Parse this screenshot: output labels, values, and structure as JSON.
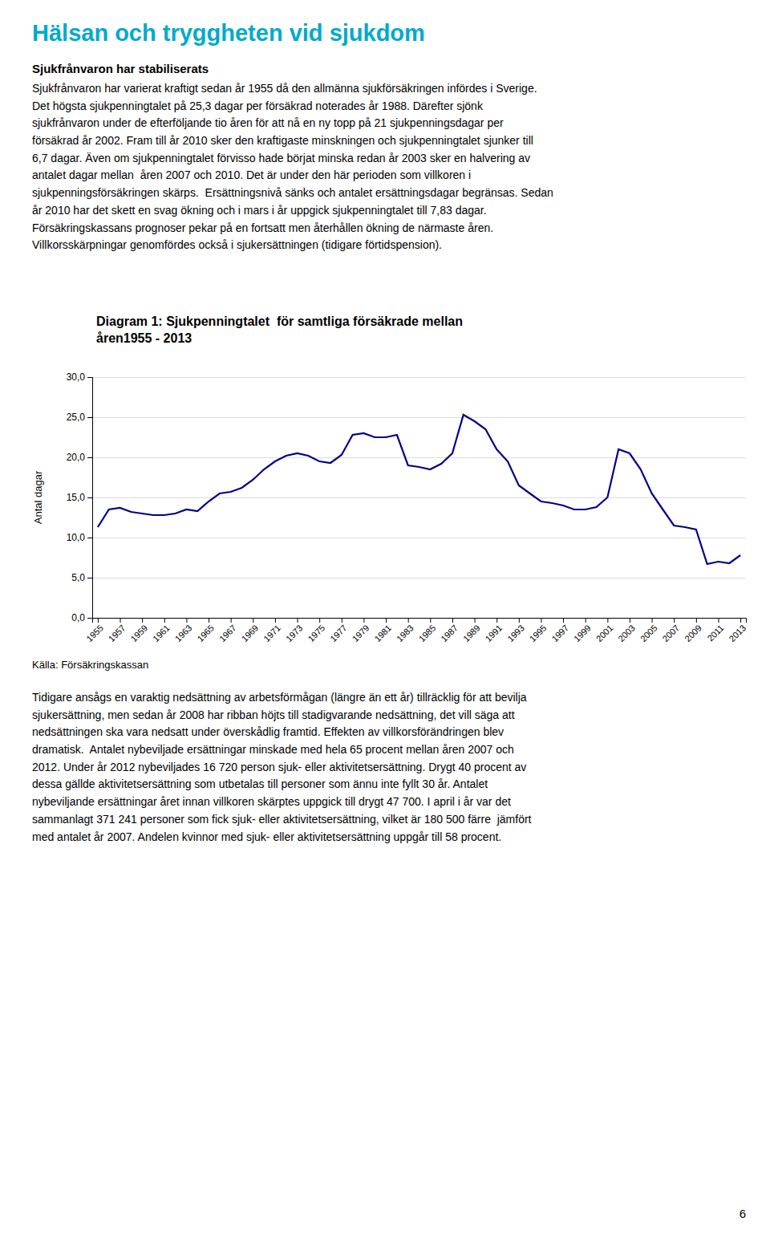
{
  "title": "Hälsan och tryggheten vid sjukdom",
  "title_color": "#00AACC",
  "subtitle": "Sjukfrånvaron har stabiliserats",
  "para1": "Sjukfrånvaron har varierat kraftigt sedan år 1955 då den allmänna sjukförsäkringen infördes i Sverige.\nDet högsta sjukpenningtalet på 25,3 dagar per försäkrad noterades år 1988. Därefter sjönk\nsjukfrånvaron under de efterföljande tio åren för att nå en ny topp på 21 sjukpenningsdagar per\nförsäkrad år 2002. Fram till år 2010 sker den kraftigaste minskningen och sjukpenningtalet sjunker till\n6,7 dagar. Även om sjukpenningtalet förvisso hade börjat minska redan år 2003 sker en halvering av\nantalet dagar mellan  åren 2007 och 2010. Det är under den här perioden som villkoren i\nsjukpenningsförsäkringen skärps.  Ersättningsnivå sänks och antalet ersättningsdagar begränsas. Sedan\når 2010 har det skett en svag ökning och i mars i år uppgick sjukpenningtalet till 7,83 dagar.\nFörsäkringskassans prognoser pekar på en fortsatt men återhållen ökning de närmaste åren.\nVillkorsskärpningar genomfördes också i sjukersättningen (tidigare förtidspension).",
  "source": "Källa: Försäkringskassan",
  "para2": "Tidigare ansågs en varaktig nedsättning av arbetsförmågan (längre än ett år) tillräcklig för att bevilja\nsjukersättning, men sedan år 2008 har ribban höjts till stadigvarande nedsättning, det vill säga att\nnedsättningen ska vara nedsatt under överskådlig framtid. Effekten av villkorsförändringen blev\ndramatisk.  Antalet nybeviljade ersättningar minskade med hela 65 procent mellan åren 2007 och\n2012. Under år 2012 nybeviljades 16 720 person sjuk- eller aktivitetsersättning. Drygt 40 procent av\ndessa gällde aktivitetsersättning som utbetalas till personer som ännu inte fyllt 30 år. Antalet\nnybeviljande ersättningar året innan villkoren skärptes uppgick till drygt 47 700. I april i år var det\nsammanlagt 371 241 personer som fick sjuk- eller aktivitetsersättning, vilket är 180 500 färre  jämfört\nmed antalet år 2007. Andelen kvinnor med sjuk- eller aktivitetsersättning uppgår till 58 procent.",
  "page_number": "6",
  "chart_data": {
    "type": "line",
    "title": "Diagram 1: Sjukpenningtalet  för samtliga försäkrade mellan\nåren1955 - 2013",
    "ylabel": "Antal dagar",
    "color": "#00008B",
    "grid": true,
    "x": [
      1955,
      1956,
      1957,
      1958,
      1959,
      1960,
      1961,
      1962,
      1963,
      1964,
      1965,
      1966,
      1967,
      1968,
      1969,
      1970,
      1971,
      1972,
      1973,
      1974,
      1975,
      1976,
      1977,
      1978,
      1979,
      1980,
      1981,
      1982,
      1983,
      1984,
      1985,
      1986,
      1987,
      1988,
      1989,
      1990,
      1991,
      1992,
      1993,
      1994,
      1995,
      1996,
      1997,
      1998,
      1999,
      2000,
      2001,
      2002,
      2003,
      2004,
      2005,
      2006,
      2007,
      2008,
      2009,
      2010,
      2011,
      2012,
      2013
    ],
    "values": [
      11.3,
      13.5,
      13.7,
      13.2,
      13.0,
      12.8,
      12.8,
      13.0,
      13.5,
      13.3,
      14.5,
      15.5,
      15.7,
      16.2,
      17.2,
      18.5,
      19.5,
      20.2,
      20.5,
      20.2,
      19.5,
      19.3,
      20.3,
      22.8,
      23.0,
      22.5,
      22.5,
      22.8,
      19.0,
      18.8,
      18.5,
      19.2,
      20.5,
      25.3,
      24.5,
      23.5,
      21.0,
      19.5,
      16.5,
      15.5,
      14.5,
      14.3,
      14.0,
      13.5,
      13.5,
      13.8,
      15.0,
      21.0,
      20.5,
      18.5,
      15.5,
      13.5,
      11.5,
      11.3,
      11.0,
      6.7,
      7.0,
      6.8,
      7.8
    ],
    "xlim": [
      1954.5,
      2013.5
    ],
    "xticks": [
      1955,
      1957,
      1959,
      1961,
      1963,
      1965,
      1967,
      1969,
      1971,
      1973,
      1975,
      1977,
      1979,
      1981,
      1983,
      1985,
      1987,
      1989,
      1991,
      1993,
      1995,
      1997,
      1999,
      2001,
      2003,
      2005,
      2007,
      2009,
      2011,
      2013
    ],
    "ylim": [
      0,
      30
    ],
    "yticks": [
      {
        "value": 0,
        "label": "0,0"
      },
      {
        "value": 5,
        "label": "5,0"
      },
      {
        "value": 10,
        "label": "10,0"
      },
      {
        "value": 15,
        "label": "15,0"
      },
      {
        "value": 20,
        "label": "20,0"
      },
      {
        "value": 25,
        "label": "25,0"
      },
      {
        "value": 30,
        "label": "30,0"
      }
    ]
  }
}
